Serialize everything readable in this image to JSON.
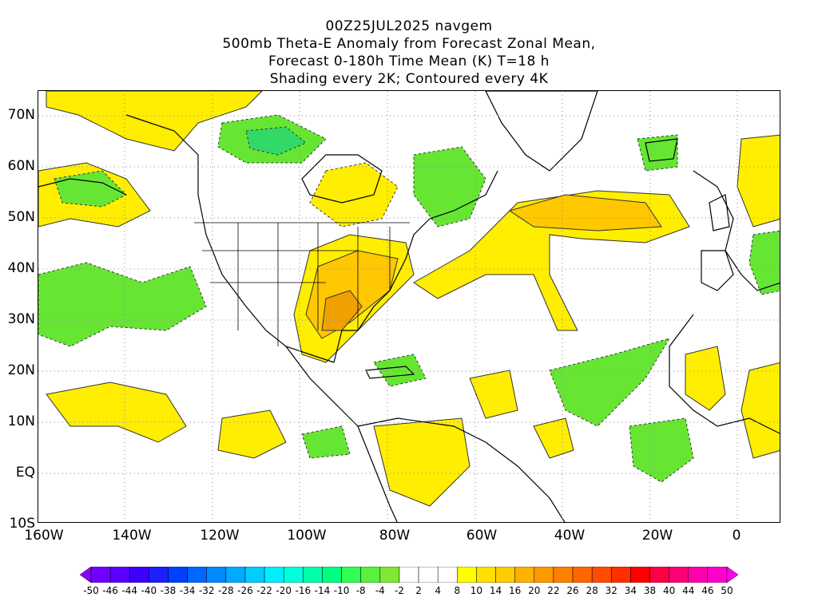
{
  "title": {
    "line1": "00Z25JUL2025 navgem",
    "line2": "500mb Theta-E Anomaly from Forecast Zonal Mean,",
    "line3": "Forecast 0-180h Time Mean (K) T=18 h",
    "line4": "Shading every 2K; Contoured every 4K"
  },
  "lat_labels": [
    "70N",
    "60N",
    "50N",
    "40N",
    "30N",
    "20N",
    "10N",
    "EQ",
    "10S"
  ],
  "lon_labels": [
    "160W",
    "140W",
    "120W",
    "100W",
    "80W",
    "60W",
    "40W",
    "20W",
    "0"
  ],
  "colorbar": {
    "labels": [
      "-50",
      "-46",
      "-44",
      "-40",
      "-38",
      "-34",
      "-32",
      "-28",
      "-26",
      "-22",
      "-20",
      "-16",
      "-14",
      "-10",
      "-8",
      "-4",
      "-2",
      "2",
      "4",
      "8",
      "10",
      "14",
      "16",
      "20",
      "22",
      "26",
      "28",
      "32",
      "34",
      "38",
      "40",
      "44",
      "46",
      "50"
    ],
    "colors": [
      "#8a00ff",
      "#7000ff",
      "#5a00ff",
      "#3c00ff",
      "#1e1eff",
      "#0040ff",
      "#0066ff",
      "#0088ff",
      "#00aaff",
      "#00ccff",
      "#00eeff",
      "#00ffdd",
      "#00ffaa",
      "#00ff80",
      "#30ff50",
      "#5af040",
      "#80e830",
      "#ffffff",
      "#ffffff",
      "#ffffff",
      "#ffff00",
      "#ffe000",
      "#ffcc00",
      "#ffb000",
      "#ff9900",
      "#ff8000",
      "#ff6600",
      "#ff4c00",
      "#ff3000",
      "#ff0000",
      "#ff0044",
      "#ff0077",
      "#ff00aa",
      "#ff00cc",
      "#ff00ee"
    ]
  },
  "map": {
    "projection": "cylindrical equidistant",
    "lon_range": [
      -160,
      10
    ],
    "lat_range": [
      -10,
      75
    ],
    "grid": "dotted",
    "fill_colors": {
      "green": "#66e633",
      "green_dark": "#33d966",
      "yellow": "#ffee00",
      "gold": "#ffc800",
      "orange": "#f0a000"
    }
  }
}
